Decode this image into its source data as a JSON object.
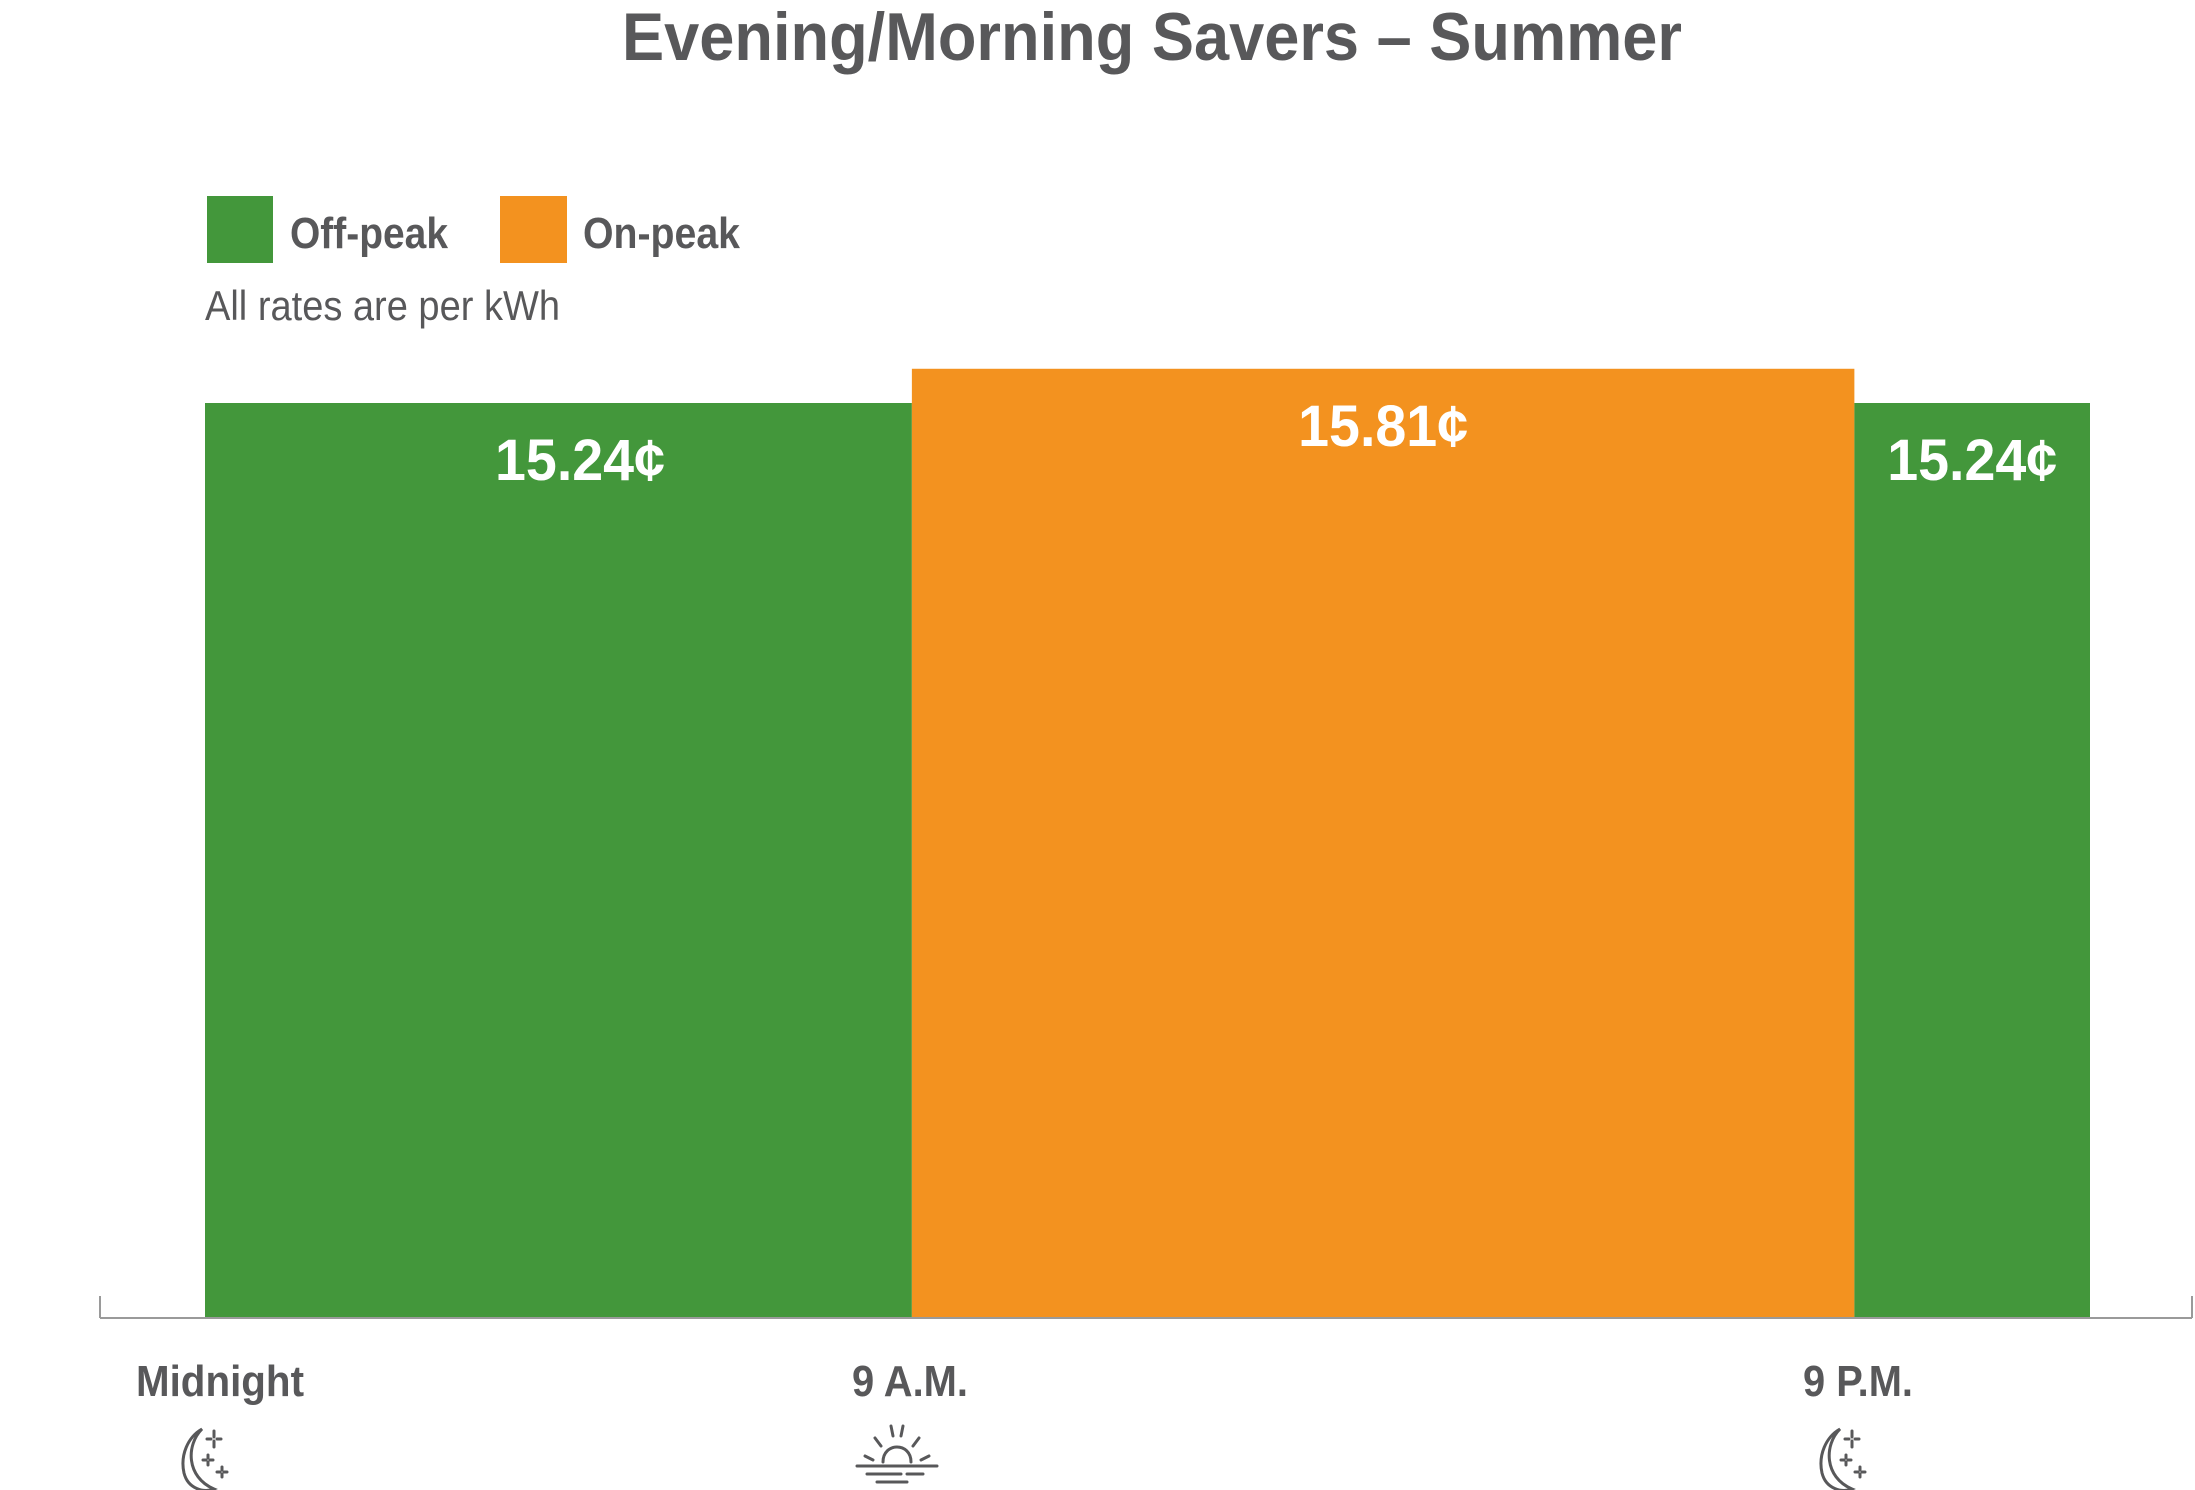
{
  "chart_data": {
    "type": "bar",
    "title": "Evening/Morning Savers – Summer",
    "subtitle": "All rates are per kWh",
    "legend": {
      "placement": "top-left",
      "items": [
        {
          "label": "Off-peak",
          "color": "#43973b"
        },
        {
          "label": "On-peak",
          "color": "#f3921f"
        }
      ]
    },
    "x_ticks": [
      {
        "label": "Midnight",
        "hour": 0,
        "icon": "moon-stars-icon"
      },
      {
        "label": "9 A.M.",
        "hour": 9,
        "icon": "sunrise-icon"
      },
      {
        "label": "9 P.M.",
        "hour": 21,
        "icon": "moon-stars-icon"
      }
    ],
    "x_range": [
      0,
      24
    ],
    "segments": [
      {
        "start": 0,
        "end": 9,
        "period": "Off-peak",
        "value": 15.24,
        "label": "15.24¢"
      },
      {
        "start": 9,
        "end": 21,
        "period": "On-peak",
        "value": 15.81,
        "label": "15.81¢"
      },
      {
        "start": 21,
        "end": 24,
        "period": "Off-peak",
        "value": 15.24,
        "label": "15.24¢"
      }
    ],
    "unit": "¢ per kWh",
    "grid": false
  }
}
